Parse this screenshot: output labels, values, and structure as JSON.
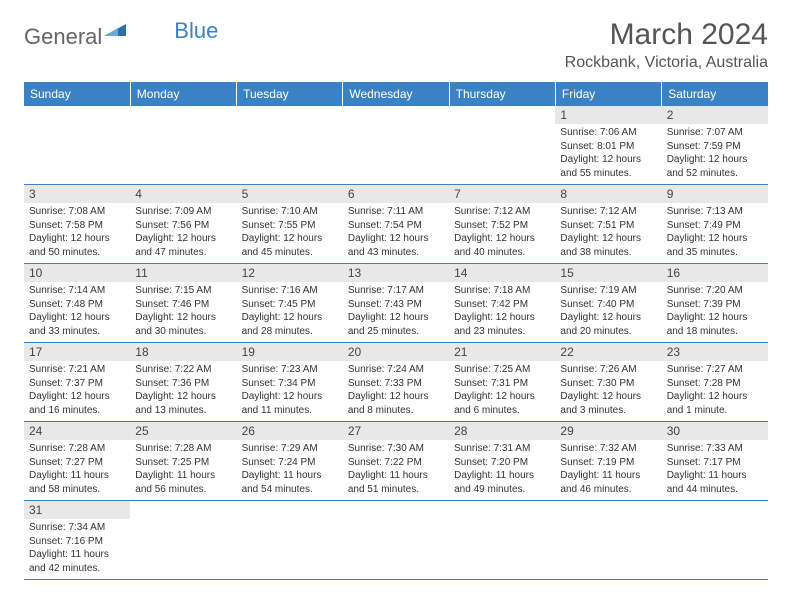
{
  "logo": {
    "text1": "General",
    "text2": "Blue"
  },
  "title": "March 2024",
  "location": "Rockbank, Victoria, Australia",
  "colors": {
    "header_bg": "#3b82c4",
    "header_text": "#ffffff",
    "daynum_bg": "#e8e8e8",
    "border": "#3b82c4",
    "body_text": "#333333"
  },
  "daysOfWeek": [
    "Sunday",
    "Monday",
    "Tuesday",
    "Wednesday",
    "Thursday",
    "Friday",
    "Saturday"
  ],
  "weeks": [
    [
      null,
      null,
      null,
      null,
      null,
      {
        "n": "1",
        "sr": "7:06 AM",
        "ss": "8:01 PM",
        "dl": "12 hours and 55 minutes."
      },
      {
        "n": "2",
        "sr": "7:07 AM",
        "ss": "7:59 PM",
        "dl": "12 hours and 52 minutes."
      }
    ],
    [
      {
        "n": "3",
        "sr": "7:08 AM",
        "ss": "7:58 PM",
        "dl": "12 hours and 50 minutes."
      },
      {
        "n": "4",
        "sr": "7:09 AM",
        "ss": "7:56 PM",
        "dl": "12 hours and 47 minutes."
      },
      {
        "n": "5",
        "sr": "7:10 AM",
        "ss": "7:55 PM",
        "dl": "12 hours and 45 minutes."
      },
      {
        "n": "6",
        "sr": "7:11 AM",
        "ss": "7:54 PM",
        "dl": "12 hours and 43 minutes."
      },
      {
        "n": "7",
        "sr": "7:12 AM",
        "ss": "7:52 PM",
        "dl": "12 hours and 40 minutes."
      },
      {
        "n": "8",
        "sr": "7:12 AM",
        "ss": "7:51 PM",
        "dl": "12 hours and 38 minutes."
      },
      {
        "n": "9",
        "sr": "7:13 AM",
        "ss": "7:49 PM",
        "dl": "12 hours and 35 minutes."
      }
    ],
    [
      {
        "n": "10",
        "sr": "7:14 AM",
        "ss": "7:48 PM",
        "dl": "12 hours and 33 minutes."
      },
      {
        "n": "11",
        "sr": "7:15 AM",
        "ss": "7:46 PM",
        "dl": "12 hours and 30 minutes."
      },
      {
        "n": "12",
        "sr": "7:16 AM",
        "ss": "7:45 PM",
        "dl": "12 hours and 28 minutes."
      },
      {
        "n": "13",
        "sr": "7:17 AM",
        "ss": "7:43 PM",
        "dl": "12 hours and 25 minutes."
      },
      {
        "n": "14",
        "sr": "7:18 AM",
        "ss": "7:42 PM",
        "dl": "12 hours and 23 minutes."
      },
      {
        "n": "15",
        "sr": "7:19 AM",
        "ss": "7:40 PM",
        "dl": "12 hours and 20 minutes."
      },
      {
        "n": "16",
        "sr": "7:20 AM",
        "ss": "7:39 PM",
        "dl": "12 hours and 18 minutes."
      }
    ],
    [
      {
        "n": "17",
        "sr": "7:21 AM",
        "ss": "7:37 PM",
        "dl": "12 hours and 16 minutes."
      },
      {
        "n": "18",
        "sr": "7:22 AM",
        "ss": "7:36 PM",
        "dl": "12 hours and 13 minutes."
      },
      {
        "n": "19",
        "sr": "7:23 AM",
        "ss": "7:34 PM",
        "dl": "12 hours and 11 minutes."
      },
      {
        "n": "20",
        "sr": "7:24 AM",
        "ss": "7:33 PM",
        "dl": "12 hours and 8 minutes."
      },
      {
        "n": "21",
        "sr": "7:25 AM",
        "ss": "7:31 PM",
        "dl": "12 hours and 6 minutes."
      },
      {
        "n": "22",
        "sr": "7:26 AM",
        "ss": "7:30 PM",
        "dl": "12 hours and 3 minutes."
      },
      {
        "n": "23",
        "sr": "7:27 AM",
        "ss": "7:28 PM",
        "dl": "12 hours and 1 minute."
      }
    ],
    [
      {
        "n": "24",
        "sr": "7:28 AM",
        "ss": "7:27 PM",
        "dl": "11 hours and 58 minutes."
      },
      {
        "n": "25",
        "sr": "7:28 AM",
        "ss": "7:25 PM",
        "dl": "11 hours and 56 minutes."
      },
      {
        "n": "26",
        "sr": "7:29 AM",
        "ss": "7:24 PM",
        "dl": "11 hours and 54 minutes."
      },
      {
        "n": "27",
        "sr": "7:30 AM",
        "ss": "7:22 PM",
        "dl": "11 hours and 51 minutes."
      },
      {
        "n": "28",
        "sr": "7:31 AM",
        "ss": "7:20 PM",
        "dl": "11 hours and 49 minutes."
      },
      {
        "n": "29",
        "sr": "7:32 AM",
        "ss": "7:19 PM",
        "dl": "11 hours and 46 minutes."
      },
      {
        "n": "30",
        "sr": "7:33 AM",
        "ss": "7:17 PM",
        "dl": "11 hours and 44 minutes."
      }
    ],
    [
      {
        "n": "31",
        "sr": "7:34 AM",
        "ss": "7:16 PM",
        "dl": "11 hours and 42 minutes."
      },
      null,
      null,
      null,
      null,
      null,
      null
    ]
  ],
  "labels": {
    "sunrise": "Sunrise:",
    "sunset": "Sunset:",
    "daylight": "Daylight:"
  }
}
